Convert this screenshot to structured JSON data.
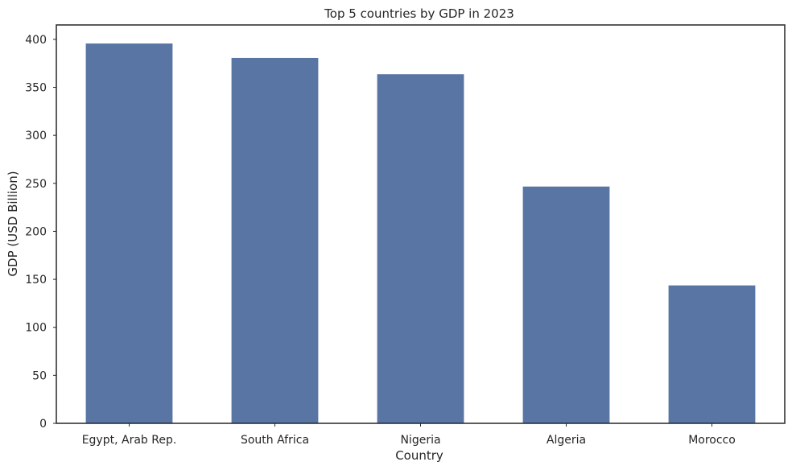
{
  "chart_data": {
    "type": "bar",
    "title": "Top 5 countries by GDP in 2023",
    "xlabel": "Country",
    "ylabel": "GDP (USD Billion)",
    "categories": [
      "Egypt, Arab Rep.",
      "South Africa",
      "Nigeria",
      "Algeria",
      "Morocco"
    ],
    "values": [
      396,
      381,
      364,
      247,
      144
    ],
    "ylim": [
      0,
      415
    ],
    "yticks": [
      0,
      50,
      100,
      150,
      200,
      250,
      300,
      350,
      400
    ],
    "grid": false,
    "legend": "none",
    "bar_color": "#5875a4",
    "axis_color": "#262626"
  }
}
